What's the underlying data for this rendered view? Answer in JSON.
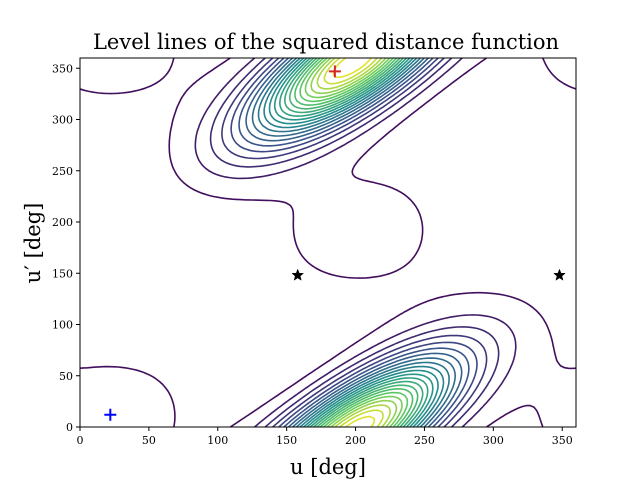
{
  "chart_data": {
    "type": "contour",
    "title": "Level lines of the squared distance function",
    "xlabel": "u [deg]",
    "ylabel": "u′ [deg]",
    "xlim": [
      0,
      360
    ],
    "ylim": [
      0,
      360
    ],
    "xticks": [
      0,
      50,
      100,
      150,
      200,
      250,
      300,
      350
    ],
    "yticks": [
      0,
      50,
      100,
      150,
      200,
      250,
      300,
      350
    ],
    "grid": false,
    "colormap": [
      "#440154",
      "#3b528b",
      "#21918c",
      "#5ec962",
      "#fde725"
    ],
    "maxima": [
      {
        "u": 185,
        "up": 347,
        "marker": "plus",
        "color": "#d62728"
      },
      {
        "u": 213,
        "up": 5,
        "marker": "none",
        "color": "#fde725"
      }
    ],
    "minima": [
      {
        "u": 22,
        "up": 12,
        "marker": "plus",
        "color": "#0000ff"
      }
    ],
    "saddles": [
      {
        "u": 158,
        "up": 148,
        "marker": "star",
        "color": "#000000"
      },
      {
        "u": 348,
        "up": 148,
        "marker": "star",
        "color": "#000000"
      }
    ]
  }
}
